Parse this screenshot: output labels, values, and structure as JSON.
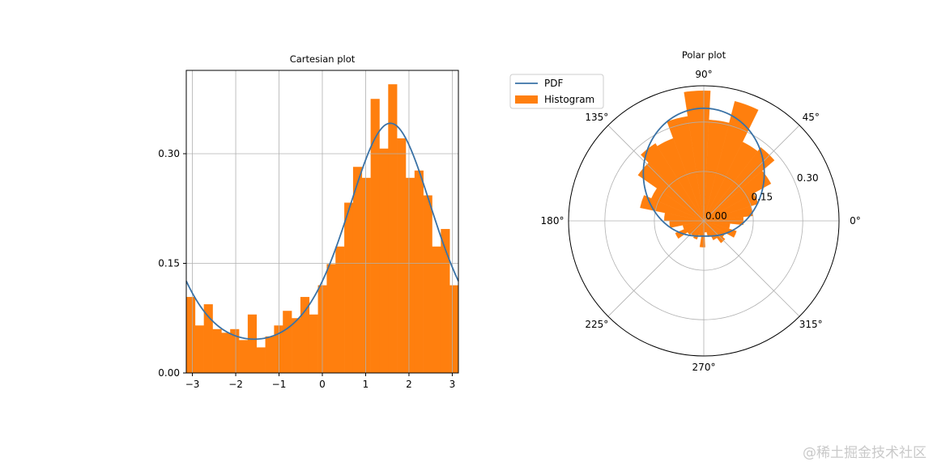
{
  "chart_data": [
    {
      "type": "bar",
      "title": "Cartesian plot",
      "xlabel": "",
      "ylabel": "",
      "xlim": [
        -3.14159,
        3.14159
      ],
      "ylim": [
        0,
        0.414
      ],
      "xticks": [
        "−3",
        "−2",
        "−1",
        "0",
        "1",
        "2",
        "3"
      ],
      "xtick_values": [
        -3,
        -2,
        -1,
        0,
        1,
        2,
        3
      ],
      "yticks": [
        "0.00",
        "0.15",
        "0.30"
      ],
      "ytick_values": [
        0,
        0.15,
        0.3
      ],
      "grid": true,
      "bins": 31,
      "bin_range": [
        -3.14159,
        3.14159
      ],
      "values": [
        0.104,
        0.065,
        0.094,
        0.06,
        0.055,
        0.06,
        0.045,
        0.08,
        0.035,
        0.05,
        0.065,
        0.085,
        0.075,
        0.104,
        0.08,
        0.12,
        0.149,
        0.173,
        0.233,
        0.282,
        0.267,
        0.375,
        0.307,
        0.395,
        0.321,
        0.267,
        0.277,
        0.243,
        0.173,
        0.197,
        0.12
      ],
      "pdf": {
        "name": "PDF",
        "distribution": "von Mises",
        "mu": 1.5708,
        "kappa": 1.0
      }
    },
    {
      "type": "polar-bar",
      "title": "Polar plot",
      "rlim": [
        0,
        0.41
      ],
      "rticks": [
        "0.00",
        "0.15",
        "0.30"
      ],
      "rtick_values": [
        0,
        0.15,
        0.3
      ],
      "angle_ticks": [
        "0°",
        "45°",
        "90°",
        "135°",
        "180°",
        "225°",
        "270°",
        "315°"
      ],
      "angle_tick_values": [
        0,
        45,
        90,
        135,
        180,
        225,
        270,
        315
      ],
      "legend": {
        "placement": "upper-left",
        "entries": [
          "PDF",
          "Histogram"
        ]
      }
    }
  ],
  "colors": {
    "histogram": "#ff7f0e",
    "pdf": "#3a72a6",
    "grid": "#b0b0b0"
  },
  "watermark": "@稀土掘金技术社区"
}
